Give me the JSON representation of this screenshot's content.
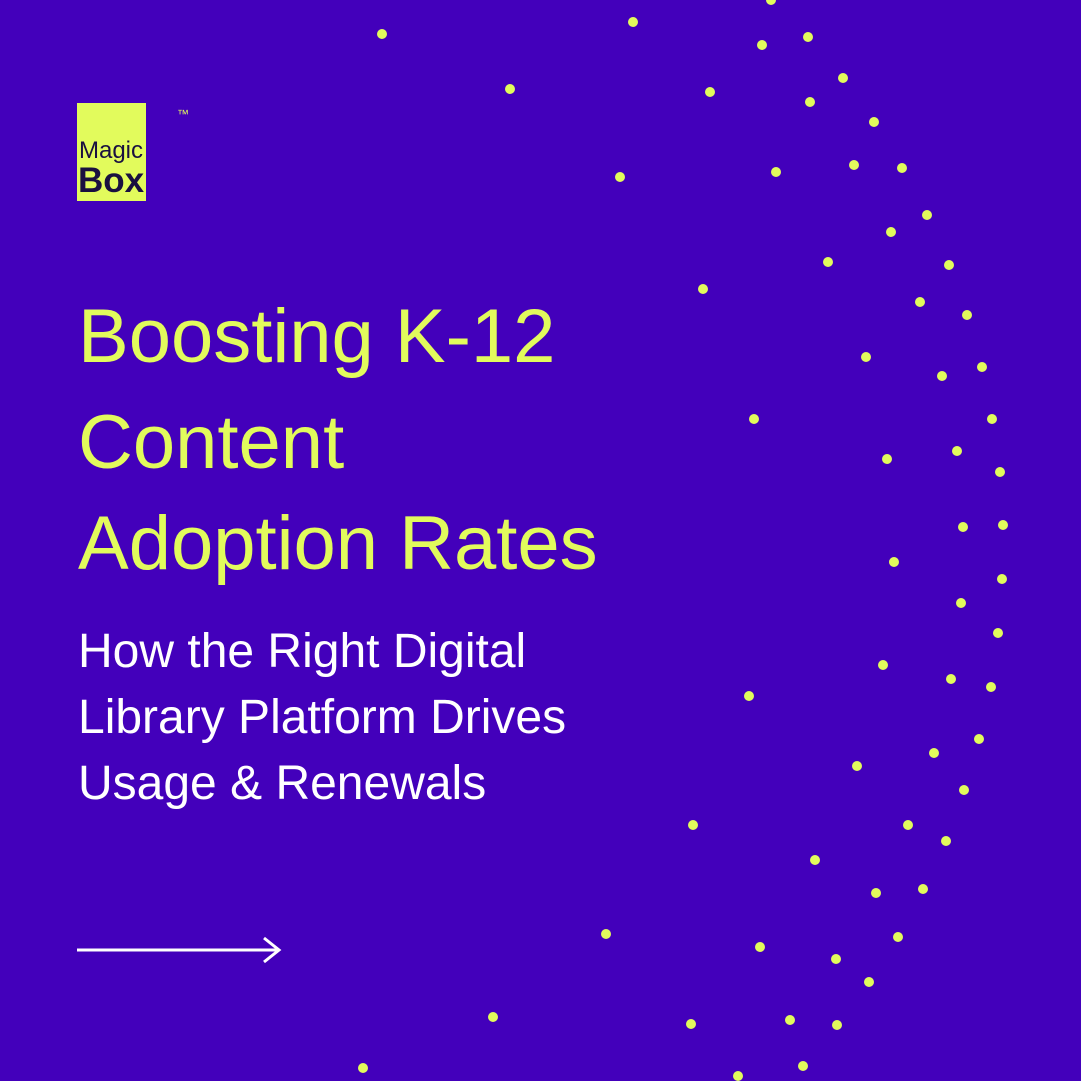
{
  "logo": {
    "line1": "Magic",
    "line2": "Box",
    "trademark": "™"
  },
  "title": [
    "Boosting K-12",
    "Content",
    "Adoption Rates"
  ],
  "subtitle": [
    "How the Right Digital",
    "Library Platform Drives",
    "Usage & Renewals"
  ]
}
